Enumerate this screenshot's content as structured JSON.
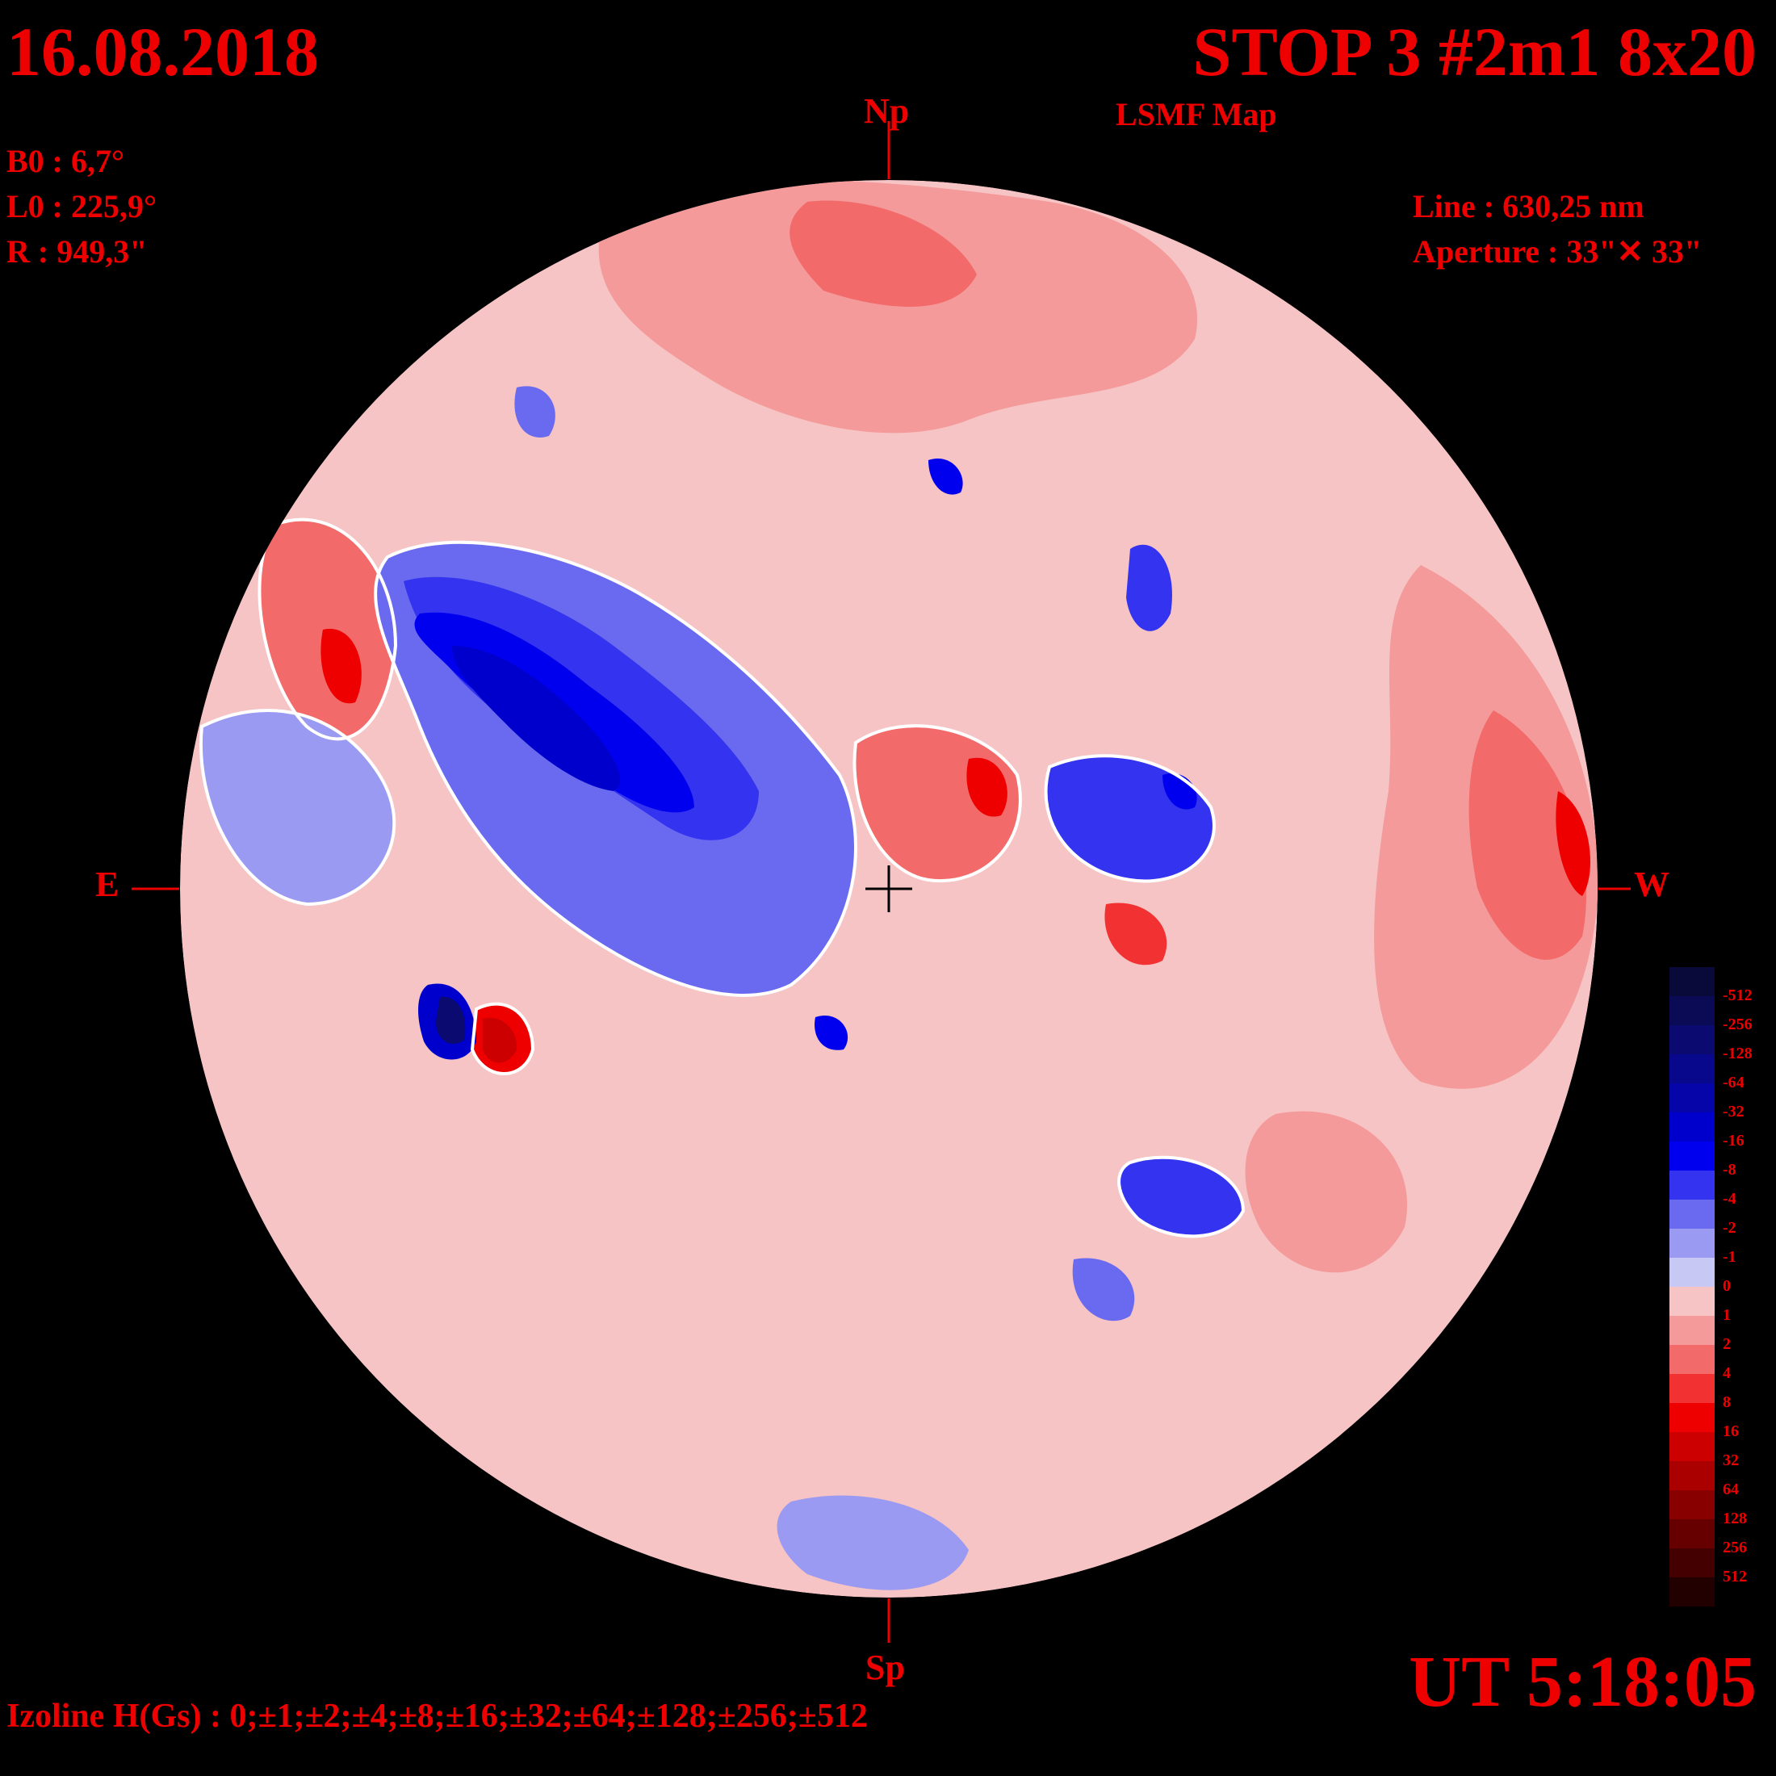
{
  "header": {
    "date": "16.08.2018",
    "title": "STOP 3 #2m1 8x20",
    "subtitle": "LSMF  Map"
  },
  "params": {
    "b0": "B0 : 6,7°",
    "l0": "L0 : 225,9°",
    "r": "R  : 949,3\""
  },
  "instrument": {
    "line": "Line :  630,25 nm",
    "aperture": "Aperture : 33\"✕ 33\""
  },
  "directions": {
    "north": "Np",
    "south": "Sp",
    "east": "E",
    "west": "W"
  },
  "time": "UT 5:18:05",
  "izoline": "Izoline H(Gs) : 0;±1;±2;±4;±8;±16;±32;±64;±128;±256;±512",
  "colors": {
    "label_red": "#ee0000",
    "background": "#000000",
    "contour_line": "#ffffff"
  },
  "scale": {
    "labels": [
      "-512",
      "-256",
      "-128",
      "-64",
      "-32",
      "-16",
      "-8",
      "-4",
      "-2",
      "-1",
      "0",
      "1",
      "2",
      "4",
      "8",
      "16",
      "32",
      "64",
      "128",
      "256",
      "512"
    ],
    "colors": [
      "#0a0a3a",
      "#0a0a55",
      "#0a0a70",
      "#08088c",
      "#0505aa",
      "#0000cc",
      "#0000ee",
      "#3333f0",
      "#6a6af0",
      "#9a9af2",
      "#c8c8f4",
      "#f6c4c4",
      "#f49a9a",
      "#f26a6a",
      "#f23232",
      "#ee0000",
      "#cc0000",
      "#aa0000",
      "#880000",
      "#660000",
      "#440000",
      "#220000"
    ]
  }
}
